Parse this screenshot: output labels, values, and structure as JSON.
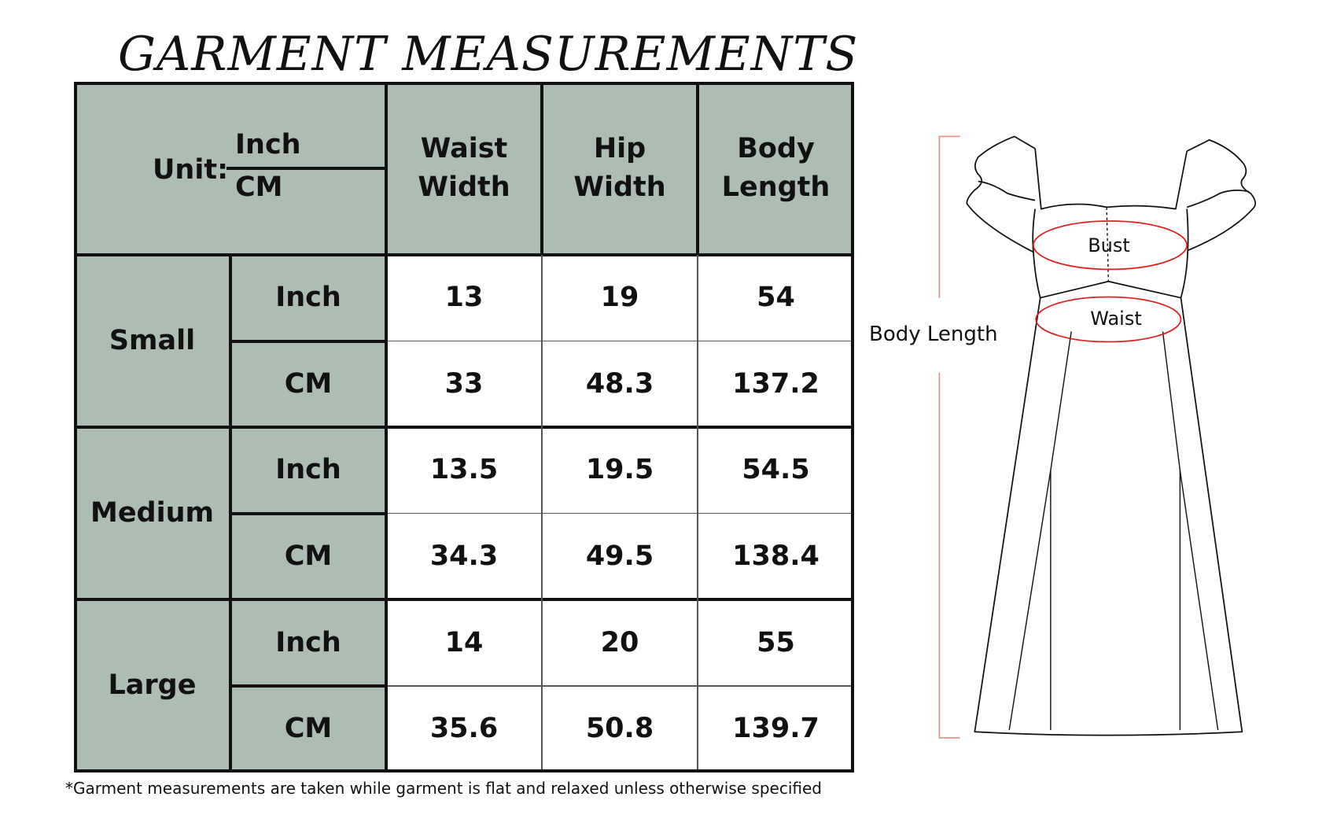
{
  "title": "GARMENT MEASUREMENTS",
  "table": {
    "unit_label": "Unit:",
    "unit_top": "Inch",
    "unit_bottom": "CM",
    "columns": [
      "Waist\nWidth",
      "Hip\nWidth",
      "Body\nLength"
    ],
    "sizes": [
      {
        "name": "Small",
        "rows": [
          {
            "unit": "Inch",
            "values": [
              "13",
              "19",
              "54"
            ]
          },
          {
            "unit": "CM",
            "values": [
              "33",
              "48.3",
              "137.2"
            ]
          }
        ]
      },
      {
        "name": "Medium",
        "rows": [
          {
            "unit": "Inch",
            "values": [
              "13.5",
              "19.5",
              "54.5"
            ]
          },
          {
            "unit": "CM",
            "values": [
              "34.3",
              "49.5",
              "138.4"
            ]
          }
        ]
      },
      {
        "name": "Large",
        "rows": [
          {
            "unit": "Inch",
            "values": [
              "14",
              "20",
              "55"
            ]
          },
          {
            "unit": "CM",
            "values": [
              "35.6",
              "50.8",
              "139.7"
            ]
          }
        ]
      }
    ]
  },
  "footnote": "*Garment measurements are taken while garment is flat and relaxed unless otherwise specified",
  "diagram": {
    "body_length_label": "Body Length",
    "bust_label": "Bust",
    "waist_label": "Waist"
  },
  "colors": {
    "header_fill": "#adbdb4",
    "measure_accent": "#e02020"
  }
}
